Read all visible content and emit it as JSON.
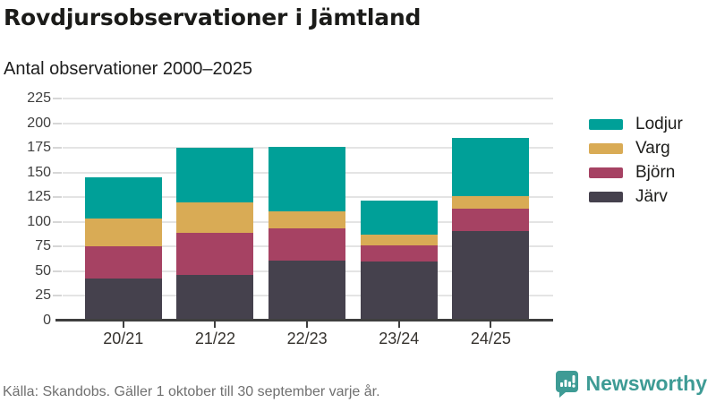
{
  "header": {
    "title": "Rovdjursobservationer i Jämtland",
    "subtitle": "Antal observationer 2000–2025"
  },
  "chart_data": {
    "type": "bar",
    "stacked": true,
    "title": "Rovdjursobservationer i Jämtland",
    "subtitle": "Antal observationer 2000–2025",
    "categories": [
      "20/21",
      "21/22",
      "22/23",
      "23/24",
      "24/25"
    ],
    "series": [
      {
        "name": "Järv",
        "color": "#45414d",
        "values": [
          43,
          46,
          61,
          60,
          91
        ]
      },
      {
        "name": "Björn",
        "color": "#a64263",
        "values": [
          32,
          43,
          32,
          16,
          22
        ]
      },
      {
        "name": "Varg",
        "color": "#d9ab55",
        "values": [
          28,
          31,
          18,
          11,
          13
        ]
      },
      {
        "name": "Lodjur",
        "color": "#00a098",
        "values": [
          42,
          55,
          65,
          35,
          59
        ]
      }
    ],
    "stack_totals": [
      145,
      175,
      176,
      122,
      185
    ],
    "legend_order": [
      "Lodjur",
      "Varg",
      "Björn",
      "Järv"
    ],
    "legend_position": "right",
    "xlabel": "",
    "ylabel": "",
    "ylim": [
      0,
      225
    ],
    "yticks": [
      0,
      25,
      50,
      75,
      100,
      125,
      150,
      175,
      200,
      225
    ],
    "grid": true
  },
  "footer": {
    "source": "Källa: Skandobs. Gäller 1 oktober till 30 september varje år.",
    "brand": "Newsworthy"
  },
  "colors": {
    "teal": "#00a098",
    "gold": "#d9ab55",
    "maroon": "#a64263",
    "dark": "#45414d",
    "brand_teal": "#3e9b95",
    "grid": "#e4e4e4",
    "axis": "#3f3f3f"
  }
}
